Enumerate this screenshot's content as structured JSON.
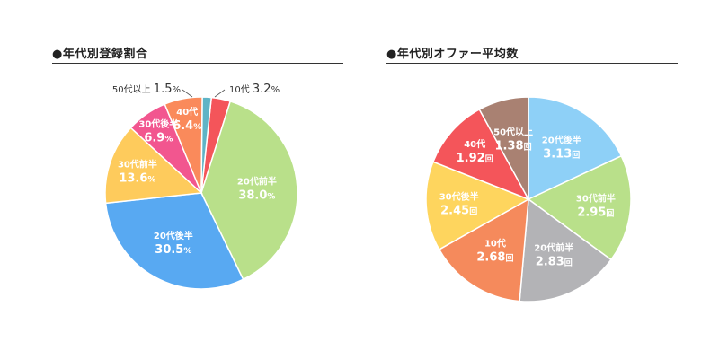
{
  "chart_data": [
    {
      "type": "pie",
      "title": "●年代別登録割合",
      "unit": "%",
      "colors": {
        "10代": "#f4555a",
        "20代前半": "#b9e08a",
        "20代後半": "#58a9f2",
        "30代前半": "#fecb5c",
        "30代後半": "#f2568f",
        "40代": "#fa8a5b",
        "50代以上": "#5fb4c6"
      },
      "slices": [
        {
          "label": "10代",
          "value": 3.2,
          "value_text": "3.2"
        },
        {
          "label": "20代前半",
          "value": 38.0,
          "value_text": "38.0"
        },
        {
          "label": "20代後半",
          "value": 30.5,
          "value_text": "30.5"
        },
        {
          "label": "30代前半",
          "value": 13.6,
          "value_text": "13.6"
        },
        {
          "label": "30代後半",
          "value": 6.9,
          "value_text": "6.9"
        },
        {
          "label": "40代",
          "value": 6.4,
          "value_text": "6.4"
        },
        {
          "label": "50代以上",
          "value": 1.5,
          "value_text": "1.5"
        }
      ]
    },
    {
      "type": "pie",
      "title": "●年代別オファー平均数",
      "unit": "回",
      "colors": {
        "20代後半": "#8ed0f7",
        "30代前半": "#b9e08a",
        "20代前半": "#b3b3b6",
        "10代": "#f58a5c",
        "30代後半": "#fed55e",
        "40代": "#f4555a",
        "50代以上": "#a98172"
      },
      "slices": [
        {
          "label": "20代後半",
          "value": 3.13,
          "value_text": "3.13"
        },
        {
          "label": "30代前半",
          "value": 2.95,
          "value_text": "2.95"
        },
        {
          "label": "20代前半",
          "value": 2.83,
          "value_text": "2.83"
        },
        {
          "label": "10代",
          "value": 2.68,
          "value_text": "2.68"
        },
        {
          "label": "30代後半",
          "value": 2.45,
          "value_text": "2.45"
        },
        {
          "label": "40代",
          "value": 1.92,
          "value_text": "1.92"
        },
        {
          "label": "50代以上",
          "value": 1.38,
          "value_text": "1.38"
        }
      ]
    }
  ]
}
